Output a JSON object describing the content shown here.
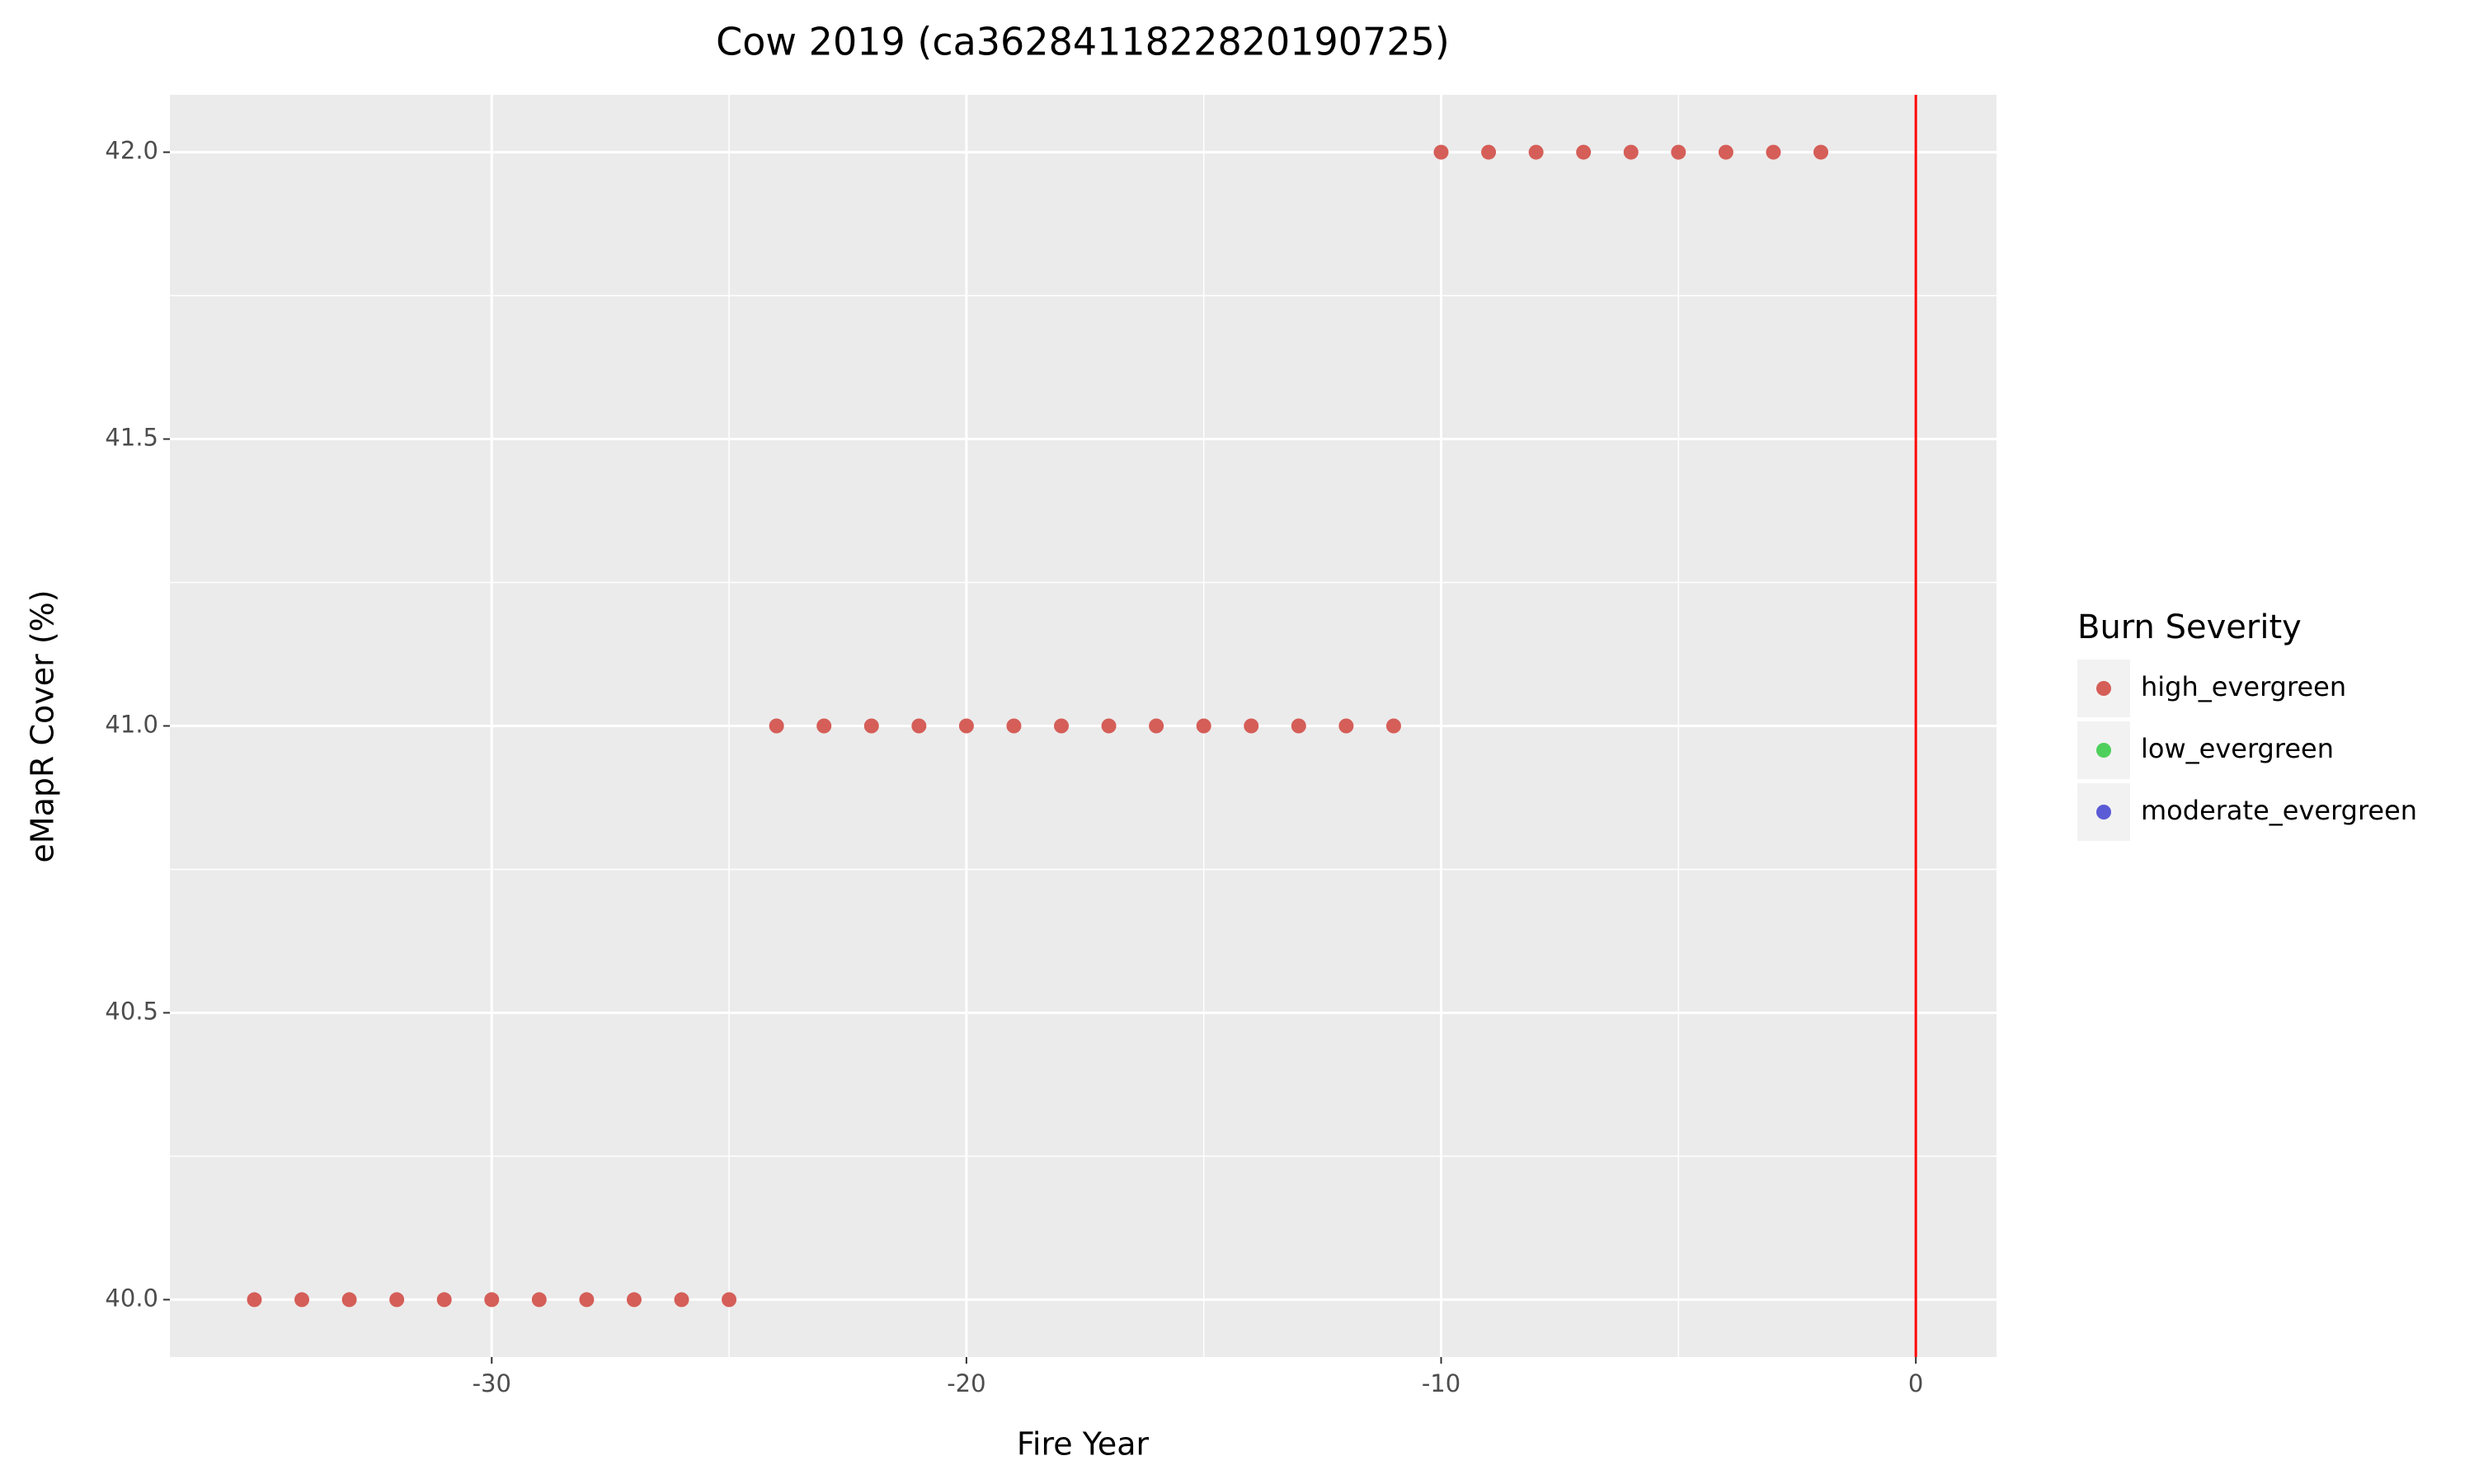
{
  "chart_data": {
    "type": "scatter",
    "title": "Cow 2019 (ca3628411822820190725)",
    "x_label": "Fire Year",
    "y_label": "eMapR Cover (%)",
    "legend_title": "Burn Severity",
    "legend_position": "right",
    "grid": true,
    "xlim": [
      -36.78,
      1.7
    ],
    "ylim": [
      39.9,
      42.1
    ],
    "xticks": [
      -30,
      -20,
      -10,
      0
    ],
    "yticks": [
      {
        "value": 40,
        "label": "40.0"
      },
      40.5,
      {
        "value": 41,
        "label": "41.0"
      },
      41.5,
      {
        "value": 42,
        "label": "42.0"
      }
    ],
    "vline": {
      "x": 0,
      "color": "#ff0000"
    },
    "series": [
      {
        "name": "high_evergreen",
        "color": "#d55e58",
        "x": [
          -35,
          -34,
          -33,
          -32,
          -31,
          -30,
          -29,
          -28,
          -27,
          -26,
          -25,
          -24,
          -23,
          -22,
          -21,
          -20,
          -19,
          -18,
          -17,
          -16,
          -15,
          -14,
          -13,
          -12,
          -11,
          -10,
          -9,
          -8,
          -7,
          -6,
          -5,
          -4,
          -3,
          -2
        ],
        "values": [
          40,
          40,
          40,
          40,
          40,
          40,
          40,
          40,
          40,
          40,
          40,
          41,
          41,
          41,
          41,
          41,
          41,
          41,
          41,
          41,
          41,
          41,
          41,
          41,
          41,
          42,
          42,
          42,
          42,
          42,
          42,
          42,
          42,
          42
        ]
      },
      {
        "name": "low_evergreen",
        "color": "#4fd05c",
        "x": [],
        "values": []
      },
      {
        "name": "moderate_evergreen",
        "color": "#5b5bd6",
        "x": [],
        "values": []
      }
    ]
  }
}
